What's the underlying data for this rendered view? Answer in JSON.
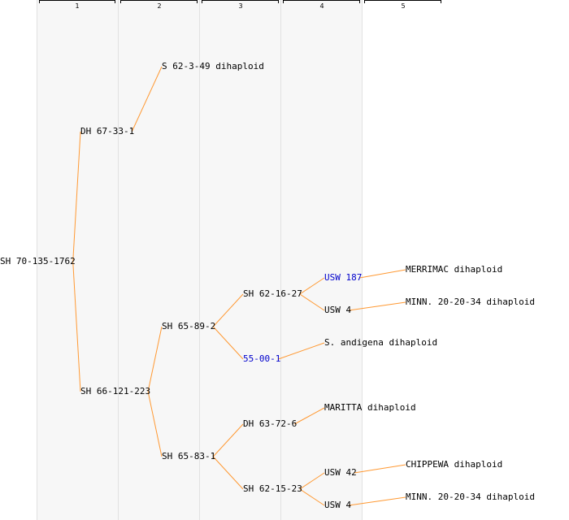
{
  "generations": [
    {
      "number": "1"
    },
    {
      "number": "2"
    },
    {
      "number": "3"
    },
    {
      "number": "4"
    },
    {
      "number": "5"
    }
  ],
  "edge_color": "#ff9933",
  "link_color": "#0000cc",
  "nodes": [
    {
      "id": "n0",
      "label": "SH 70-135-1762",
      "parent": null,
      "link": false
    },
    {
      "id": "n1",
      "label": "DH 67-33-1",
      "parent": "n0",
      "link": false
    },
    {
      "id": "n2",
      "label": "S 62-3-49 dihaploid",
      "parent": "n1",
      "link": false
    },
    {
      "id": "n3",
      "label": "SH 66-121-223",
      "parent": "n0",
      "link": false
    },
    {
      "id": "n4",
      "label": "SH 65-89-2",
      "parent": "n3",
      "link": false
    },
    {
      "id": "n5",
      "label": "SH 62-16-27",
      "parent": "n4",
      "link": false
    },
    {
      "id": "n6",
      "label": "USW 187",
      "parent": "n5",
      "link": true
    },
    {
      "id": "n7",
      "label": "MERRIMAC dihaploid",
      "parent": "n6",
      "link": false
    },
    {
      "id": "n8",
      "label": "USW 4",
      "parent": "n5",
      "link": false
    },
    {
      "id": "n9",
      "label": "MINN. 20-20-34 dihaploid",
      "parent": "n8",
      "link": false
    },
    {
      "id": "n10",
      "label": "55-00-1",
      "parent": "n4",
      "link": true
    },
    {
      "id": "n11",
      "label": "S. andigena dihaploid",
      "parent": "n10",
      "link": false
    },
    {
      "id": "n12",
      "label": "SH 65-83-1",
      "parent": "n3",
      "link": false
    },
    {
      "id": "n13",
      "label": "DH 63-72-6",
      "parent": "n12",
      "link": false
    },
    {
      "id": "n14",
      "label": "MARITTA dihaploid",
      "parent": "n13",
      "link": false
    },
    {
      "id": "n15",
      "label": "SH 62-15-23",
      "parent": "n12",
      "link": false
    },
    {
      "id": "n16",
      "label": "USW 42",
      "parent": "n15",
      "link": false
    },
    {
      "id": "n17",
      "label": "CHIPPEWA dihaploid",
      "parent": "n16",
      "link": false
    },
    {
      "id": "n18",
      "label": "USW 4",
      "parent": "n15",
      "link": false
    },
    {
      "id": "n19",
      "label": "MINN. 20-20-34 dihaploid",
      "parent": "n18",
      "link": false
    }
  ]
}
